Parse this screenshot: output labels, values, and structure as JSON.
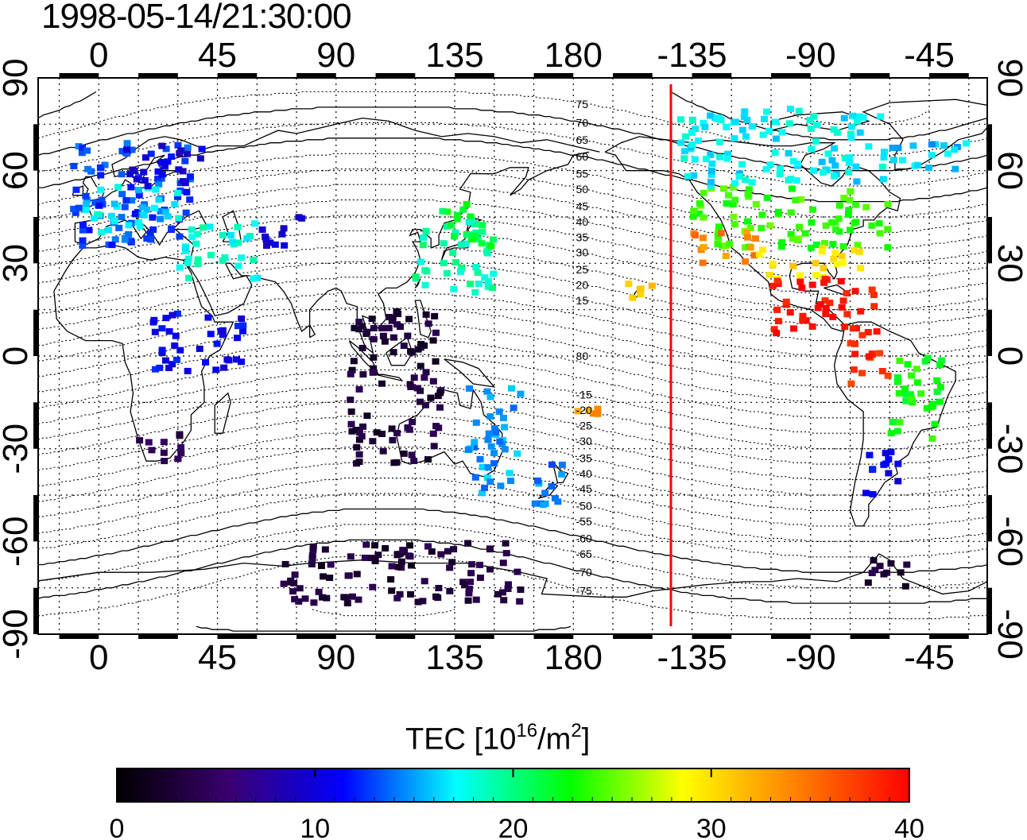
{
  "title": "1998-05-14/21:30:00",
  "map": {
    "projection": "equirectangular",
    "lon_center_start": -23,
    "lon_end": 337,
    "top_lon_ticks": [
      "0",
      "45",
      "90",
      "135",
      "180",
      "-135",
      "-90",
      "-45"
    ],
    "bottom_lon_ticks": [
      "0",
      "45",
      "90",
      "135",
      "180",
      "-135",
      "-90",
      "-45"
    ],
    "lon_tick_values": [
      0,
      45,
      90,
      135,
      180,
      225,
      270,
      315
    ],
    "left_lat_ticks": [
      "90",
      "60",
      "30",
      "0",
      "-30",
      "-60",
      "-90"
    ],
    "right_lat_ticks": [
      "90",
      "60",
      "30",
      "0",
      "-30",
      "-60",
      "-90"
    ],
    "lat_tick_values": [
      90,
      60,
      30,
      0,
      -30,
      -60,
      -90
    ],
    "terminator_lon": 217,
    "terminator_color": "#ff0000",
    "grid": true,
    "magnetic_latitude_labels": [
      "80",
      "75",
      "70",
      "65",
      "60",
      "55",
      "50",
      "45",
      "40",
      "35",
      "30",
      "25",
      "20",
      "15",
      "-15",
      "-20",
      "-25",
      "-30",
      "-35",
      "-40",
      "-45",
      "-50",
      "-55",
      "-60",
      "-65",
      "-70",
      "-75"
    ]
  },
  "colorbar": {
    "title_main": "TEC  [10",
    "title_sup1": "16",
    "title_mid": "/m",
    "title_sup2": "2",
    "title_end": "]",
    "min": 0,
    "max": 40,
    "tick_labels": [
      "0",
      "10",
      "20",
      "30",
      "40"
    ],
    "colors": [
      "#000000",
      "#3a0070",
      "#0000ff",
      "#00ffff",
      "#00ff00",
      "#ffff00",
      "#ff8000",
      "#ff0000"
    ]
  },
  "tec_data": {
    "units": "10^16/m^2",
    "regions": [
      {
        "lon0": -10,
        "lon1": 35,
        "lat0": 35,
        "lat1": 70,
        "value": 13
      },
      {
        "lon0": -5,
        "lon1": 30,
        "lat0": 40,
        "lat1": 55,
        "value": 17
      },
      {
        "lon0": 10,
        "lon1": 40,
        "lat0": 55,
        "lat1": 70,
        "value": 10
      },
      {
        "lon0": 30,
        "lon1": 60,
        "lat0": 25,
        "lat1": 45,
        "value": 18
      },
      {
        "lon0": 60,
        "lon1": 80,
        "lat0": 35,
        "lat1": 45,
        "value": 10
      },
      {
        "lon0": 120,
        "lon1": 150,
        "lat0": 20,
        "lat1": 45,
        "value": 19
      },
      {
        "lon0": 130,
        "lon1": 150,
        "lat0": 35,
        "lat1": 50,
        "value": 22
      },
      {
        "lon0": 95,
        "lon1": 130,
        "lat0": -35,
        "lat1": 15,
        "value": 3
      },
      {
        "lon0": 15,
        "lon1": 35,
        "lat0": -35,
        "lat1": -25,
        "value": 4
      },
      {
        "lon0": 20,
        "lon1": 55,
        "lat0": -5,
        "lat1": 15,
        "value": 11
      },
      {
        "lon0": 140,
        "lon1": 160,
        "lat0": -45,
        "lat1": -10,
        "value": 15
      },
      {
        "lon0": 165,
        "lon1": 180,
        "lat0": -50,
        "lat1": -35,
        "value": 14
      },
      {
        "lon0": 70,
        "lon1": 160,
        "lat0": -80,
        "lat1": -60,
        "value": 3
      },
      {
        "lon0": 225,
        "lon1": 300,
        "lat0": 35,
        "lat1": 55,
        "value": 24
      },
      {
        "lon0": 225,
        "lon1": 250,
        "lat0": 30,
        "lat1": 40,
        "value": 34
      },
      {
        "lon0": 250,
        "lon1": 290,
        "lat0": 25,
        "lat1": 35,
        "value": 30
      },
      {
        "lon0": 255,
        "lon1": 295,
        "lat0": 5,
        "lat1": 25,
        "value": 39
      },
      {
        "lon0": 285,
        "lon1": 300,
        "lat0": -10,
        "lat1": 5,
        "value": 38
      },
      {
        "lon0": 300,
        "lon1": 320,
        "lat0": -30,
        "lat1": 0,
        "value": 23
      },
      {
        "lon0": 290,
        "lon1": 305,
        "lat0": -45,
        "lat1": -30,
        "value": 11
      },
      {
        "lon0": 220,
        "lon1": 300,
        "lat0": 55,
        "lat1": 80,
        "value": 17
      },
      {
        "lon0": 300,
        "lon1": 330,
        "lat0": 60,
        "lat1": 70,
        "value": 16
      },
      {
        "lon0": 200,
        "lon1": 210,
        "lat0": 18,
        "lat1": 25,
        "value": 31
      },
      {
        "lon0": 180,
        "lon1": 190,
        "lat0": -20,
        "lat1": -15,
        "value": 33
      },
      {
        "lon0": 290,
        "lon1": 310,
        "lat0": -75,
        "lat1": -65,
        "value": 3
      }
    ]
  }
}
